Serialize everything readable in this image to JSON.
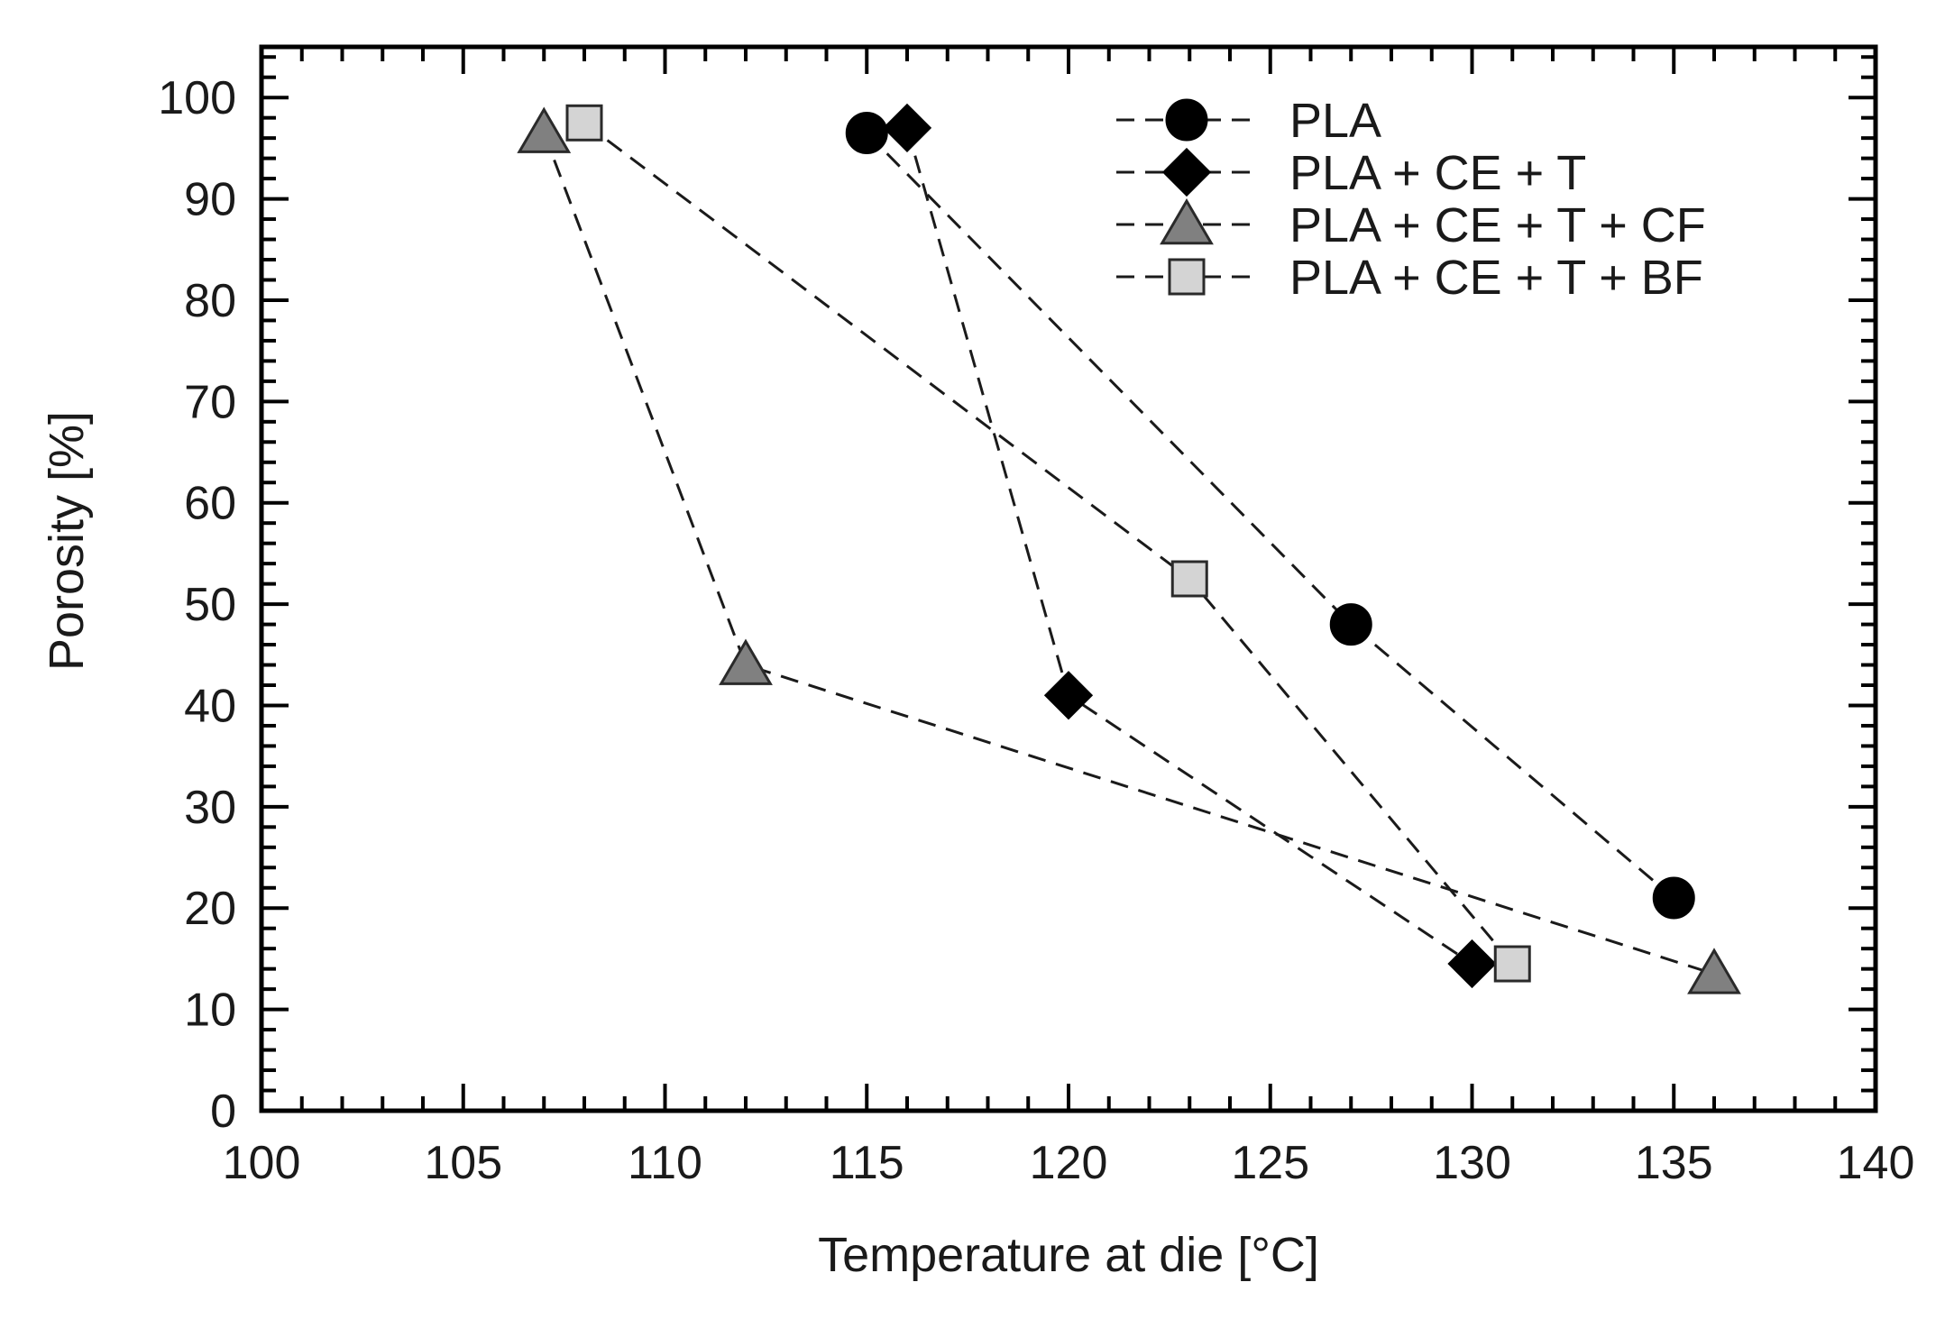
{
  "chart_data": {
    "type": "scatter",
    "title": "",
    "xlabel": "Temperature at die [°C]",
    "ylabel": "Porosity [%]",
    "xlim": [
      100,
      140
    ],
    "ylim": [
      0,
      105
    ],
    "xticks": [
      100,
      105,
      110,
      115,
      120,
      125,
      130,
      135,
      140
    ],
    "yticks": [
      0,
      10,
      20,
      30,
      40,
      50,
      60,
      70,
      80,
      90,
      100
    ],
    "grid": false,
    "legend_position": "top-right",
    "line_style": "dashed",
    "series": [
      {
        "name": "PLA",
        "marker": "circle",
        "marker_color": "#000000",
        "points": [
          [
            115,
            96.5
          ],
          [
            127,
            48
          ],
          [
            135,
            21
          ]
        ]
      },
      {
        "name": "PLA + CE + T",
        "marker": "diamond",
        "marker_color": "#000000",
        "points": [
          [
            116,
            97
          ],
          [
            120,
            41
          ],
          [
            130,
            14.5
          ]
        ]
      },
      {
        "name": "PLA + CE + T + CF",
        "marker": "triangle",
        "marker_color": "#808080",
        "points": [
          [
            107,
            96.5
          ],
          [
            112,
            44
          ],
          [
            136,
            13.5
          ]
        ]
      },
      {
        "name": "PLA + CE + T + BF",
        "marker": "square",
        "marker_color": "#d4d4d4",
        "points": [
          [
            108,
            97.5
          ],
          [
            123,
            52.5
          ],
          [
            131,
            14.5
          ]
        ]
      }
    ]
  }
}
